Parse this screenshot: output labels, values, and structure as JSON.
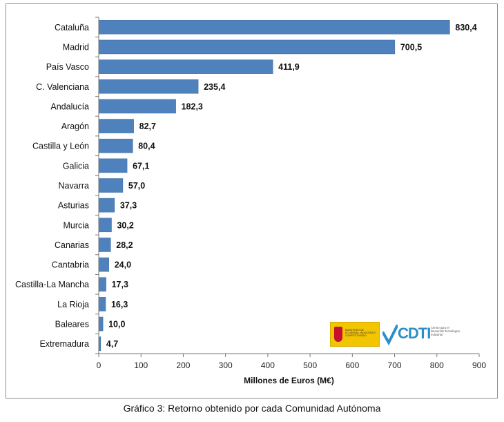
{
  "chart_data": {
    "type": "bar",
    "orientation": "horizontal",
    "categories": [
      "Cataluña",
      "Madrid",
      "País Vasco",
      "C. Valenciana",
      "Andalucía",
      "Aragón",
      "Castilla y León",
      "Galicia",
      "Navarra",
      "Asturias",
      "Murcia",
      "Canarias",
      "Cantabria",
      "Castilla-La Mancha",
      "La Rioja",
      "Baleares",
      "Extremadura"
    ],
    "values": [
      830.4,
      700.5,
      411.9,
      235.4,
      182.3,
      82.7,
      80.4,
      67.1,
      57.0,
      37.3,
      30.2,
      28.2,
      24.0,
      17.3,
      16.3,
      10.0,
      4.7
    ],
    "value_labels": [
      "830,4",
      "700,5",
      "411,9",
      "235,4",
      "182,3",
      "82,7",
      "80,4",
      "67,1",
      "57,0",
      "37,3",
      "30,2",
      "28,2",
      "24,0",
      "17,3",
      "16,3",
      "10,0",
      "4,7"
    ],
    "xlabel": "Millones de Euros (M€)",
    "ylabel": "",
    "xlim": [
      0,
      900
    ],
    "xticks": [
      "0",
      "100",
      "200",
      "300",
      "400",
      "500",
      "600",
      "700",
      "800",
      "900"
    ],
    "grid": false,
    "bar_color": "#4f81bd"
  },
  "caption": "Gráfico 3: Retorno obtenido por cada Comunidad Autónoma",
  "logos": {
    "ministry_text": "MINISTERIO DE ECONOMÍA, INDUSTRIA Y COMPETITIVIDAD",
    "cdti_wordmark": "CDTI",
    "cdti_subtext": "Centro para el Desarrollo Tecnológico Industrial"
  }
}
